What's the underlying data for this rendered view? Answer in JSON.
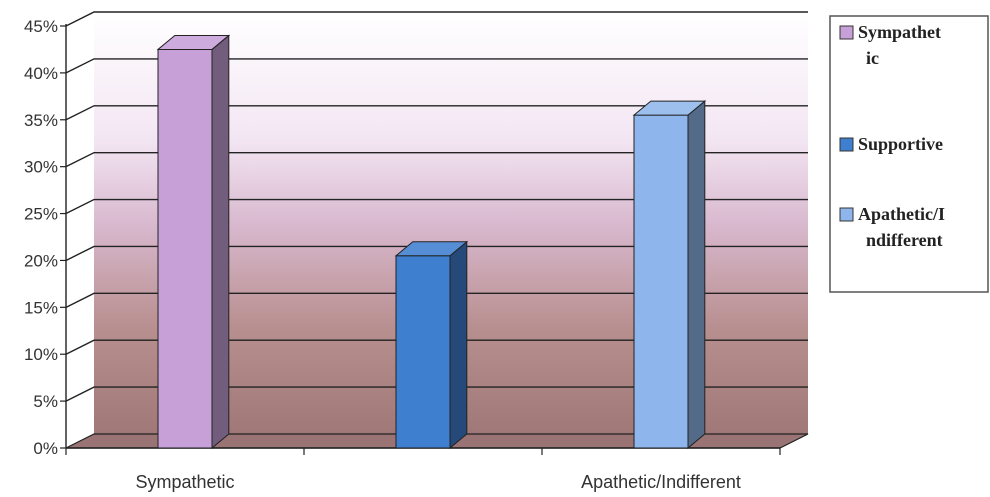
{
  "chart_data": {
    "type": "bar",
    "categories": [
      "Sympathetic",
      "",
      "Apathetic/Indifferent"
    ],
    "series": [
      {
        "name": "Sympathetic",
        "legend_lines": [
          "Sympathet",
          "ic"
        ],
        "values": [
          42.5,
          null,
          null
        ],
        "color": "#c7a0d8"
      },
      {
        "name": "Supportive",
        "legend_lines": [
          "Supportive"
        ],
        "values": [
          null,
          20.5,
          null
        ],
        "color": "#3f7fd0"
      },
      {
        "name": "Apathetic/Indifferent",
        "legend_lines": [
          "Apathetic/I",
          "ndifferent"
        ],
        "values": [
          null,
          null,
          35.5
        ],
        "color": "#8fb6ec"
      }
    ],
    "y_ticks": [
      "0%",
      "5%",
      "10%",
      "15%",
      "20%",
      "25%",
      "30%",
      "35%",
      "40%",
      "45%"
    ],
    "ylim": [
      0,
      45
    ],
    "grid": true,
    "legend_position": "right",
    "title": "",
    "xlabel": "",
    "ylabel": ""
  }
}
